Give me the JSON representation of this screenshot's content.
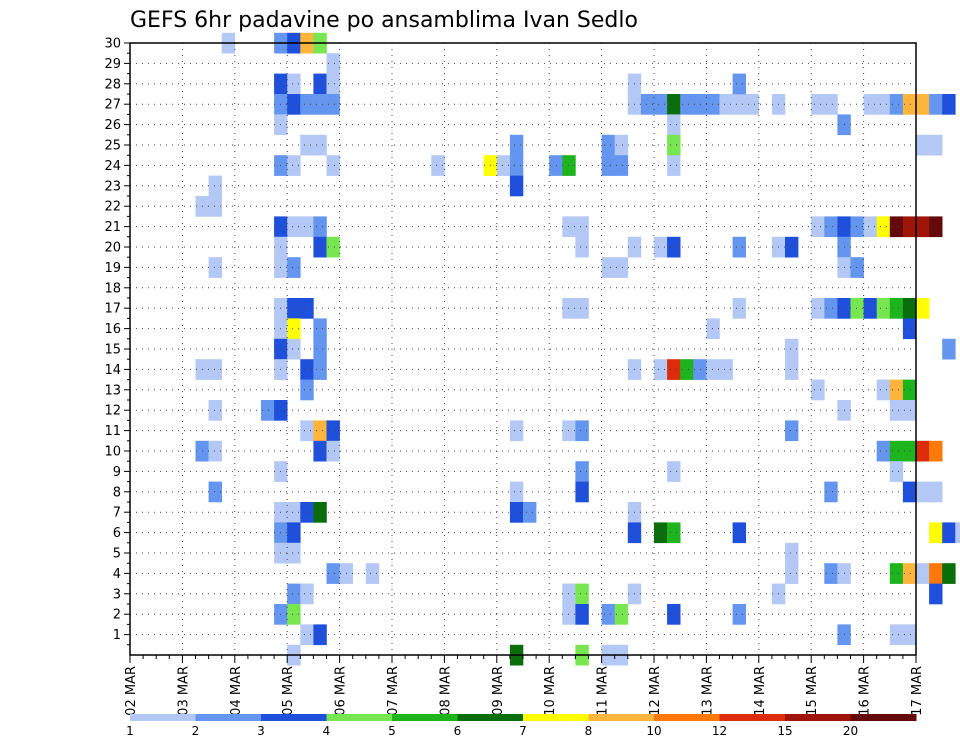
{
  "chart_data": {
    "type": "heatmap",
    "title": "GEFS 6hr padavine po ansamblima Ivan Sedlo",
    "y_ticks": [
      "1",
      "2",
      "3",
      "4",
      "5",
      "6",
      "7",
      "8",
      "9",
      "10",
      "11",
      "12",
      "13",
      "14",
      "15",
      "16",
      "17",
      "18",
      "19",
      "20",
      "21",
      "22",
      "23",
      "24",
      "25",
      "26",
      "27",
      "28",
      "29",
      "30"
    ],
    "x_ticks": [
      "02 MAR",
      "03 MAR",
      "04 MAR",
      "05 MAR",
      "06 MAR",
      "07 MAR",
      "08 MAR",
      "09 MAR",
      "10 MAR",
      "11 MAR",
      "12 MAR",
      "13 MAR",
      "14 MAR",
      "15 MAR",
      "16 MAR",
      "17 MAR"
    ],
    "x_range": [
      "02 MAR 00Z",
      "17 MAR 00Z"
    ],
    "y_range": [
      0,
      30
    ],
    "time_step": "6hr",
    "grid": true,
    "colorbar": {
      "colors": [
        "#b4c8f5",
        "#6496f0",
        "#1e50dc",
        "#78e650",
        "#1eb41e",
        "#0a6e0a",
        "#ffff00",
        "#ffb43c",
        "#ff780a",
        "#dc2d0a",
        "#a0140a",
        "#640a0a"
      ],
      "labels": [
        "1",
        "2",
        "3",
        "4",
        "5",
        "6",
        "7",
        "8",
        "10",
        "12",
        "15",
        "20"
      ],
      "label_positions": [
        0,
        1,
        2,
        3,
        4,
        5,
        6,
        7,
        8,
        9,
        10,
        11
      ]
    },
    "note": "cells: [day_index, step(0-3), member, color_index]",
    "cells": [
      [
        1,
        3,
        30,
        0
      ],
      [
        2,
        3,
        30,
        1
      ],
      [
        3,
        0,
        30,
        2
      ],
      [
        3,
        1,
        30,
        7
      ],
      [
        3,
        2,
        30,
        3
      ],
      [
        3,
        3,
        29,
        0
      ],
      [
        2,
        3,
        28,
        2
      ],
      [
        3,
        0,
        28,
        0
      ],
      [
        3,
        2,
        28,
        2
      ],
      [
        3,
        3,
        28,
        0
      ],
      [
        2,
        3,
        27,
        1
      ],
      [
        3,
        0,
        27,
        2
      ],
      [
        3,
        1,
        27,
        1
      ],
      [
        3,
        2,
        27,
        1
      ],
      [
        3,
        3,
        27,
        1
      ],
      [
        2,
        3,
        26,
        0
      ],
      [
        3,
        1,
        25,
        0
      ],
      [
        3,
        2,
        25,
        0
      ],
      [
        2,
        3,
        24,
        1
      ],
      [
        3,
        0,
        24,
        0
      ],
      [
        3,
        3,
        24,
        0
      ],
      [
        1,
        2,
        23,
        0
      ],
      [
        1,
        1,
        22,
        0
      ],
      [
        1,
        2,
        22,
        0
      ],
      [
        2,
        3,
        21,
        2
      ],
      [
        3,
        0,
        21,
        0
      ],
      [
        3,
        1,
        21,
        0
      ],
      [
        3,
        2,
        21,
        1
      ],
      [
        2,
        3,
        20,
        0
      ],
      [
        3,
        2,
        20,
        2
      ],
      [
        3,
        3,
        20,
        3
      ],
      [
        1,
        2,
        19,
        0
      ],
      [
        2,
        3,
        19,
        0
      ],
      [
        3,
        0,
        19,
        1
      ],
      [
        2,
        3,
        17,
        0
      ],
      [
        3,
        0,
        17,
        2
      ],
      [
        3,
        1,
        17,
        2
      ],
      [
        2,
        3,
        16,
        0
      ],
      [
        3,
        0,
        16,
        6
      ],
      [
        3,
        2,
        16,
        1
      ],
      [
        2,
        3,
        15,
        2
      ],
      [
        3,
        0,
        15,
        0
      ],
      [
        3,
        2,
        15,
        1
      ],
      [
        1,
        1,
        14,
        0
      ],
      [
        1,
        2,
        14,
        0
      ],
      [
        2,
        3,
        14,
        0
      ],
      [
        3,
        1,
        14,
        2
      ],
      [
        3,
        2,
        14,
        1
      ],
      [
        3,
        1,
        13,
        1
      ],
      [
        1,
        2,
        12,
        0
      ],
      [
        2,
        2,
        12,
        1
      ],
      [
        2,
        3,
        12,
        2
      ],
      [
        3,
        1,
        11,
        0
      ],
      [
        3,
        2,
        11,
        7
      ],
      [
        3,
        3,
        11,
        2
      ],
      [
        1,
        1,
        10,
        1
      ],
      [
        1,
        2,
        10,
        0
      ],
      [
        3,
        2,
        10,
        2
      ],
      [
        3,
        3,
        10,
        0
      ],
      [
        2,
        3,
        9,
        0
      ],
      [
        1,
        2,
        8,
        1
      ],
      [
        2,
        3,
        7,
        0
      ],
      [
        3,
        0,
        7,
        0
      ],
      [
        3,
        1,
        7,
        2
      ],
      [
        3,
        2,
        7,
        5
      ],
      [
        2,
        3,
        6,
        1
      ],
      [
        3,
        0,
        6,
        2
      ],
      [
        2,
        3,
        5,
        0
      ],
      [
        3,
        0,
        5,
        0
      ],
      [
        3,
        3,
        4,
        1
      ],
      [
        4,
        0,
        4,
        0
      ],
      [
        4,
        2,
        4,
        0
      ],
      [
        3,
        0,
        3,
        1
      ],
      [
        3,
        1,
        3,
        0
      ],
      [
        2,
        3,
        2,
        1
      ],
      [
        3,
        0,
        2,
        3
      ],
      [
        3,
        1,
        1,
        0
      ],
      [
        3,
        2,
        1,
        2
      ],
      [
        3,
        0,
        0,
        0
      ],
      [
        5,
        3,
        24,
        0
      ],
      [
        6,
        3,
        24,
        6
      ],
      [
        7,
        1,
        25,
        1
      ],
      [
        7,
        0,
        24,
        0
      ],
      [
        7,
        1,
        24,
        1
      ],
      [
        7,
        1,
        23,
        2
      ],
      [
        7,
        1,
        11,
        0
      ],
      [
        7,
        1,
        8,
        0
      ],
      [
        7,
        1,
        7,
        2
      ],
      [
        7,
        2,
        7,
        1
      ],
      [
        7,
        1,
        0,
        5
      ],
      [
        8,
        0,
        24,
        1
      ],
      [
        8,
        1,
        24,
        4
      ],
      [
        8,
        1,
        21,
        0
      ],
      [
        8,
        2,
        21,
        0
      ],
      [
        8,
        2,
        20,
        0
      ],
      [
        8,
        1,
        17,
        0
      ],
      [
        8,
        2,
        17,
        0
      ],
      [
        8,
        1,
        11,
        0
      ],
      [
        8,
        2,
        11,
        1
      ],
      [
        8,
        2,
        9,
        1
      ],
      [
        8,
        2,
        8,
        2
      ],
      [
        8,
        1,
        3,
        0
      ],
      [
        8,
        2,
        3,
        3
      ],
      [
        8,
        1,
        2,
        0
      ],
      [
        8,
        2,
        2,
        2
      ],
      [
        8,
        2,
        0,
        3
      ],
      [
        9,
        0,
        25,
        1
      ],
      [
        9,
        1,
        25,
        0
      ],
      [
        9,
        0,
        24,
        1
      ],
      [
        9,
        1,
        24,
        1
      ],
      [
        9,
        0,
        19,
        0
      ],
      [
        9,
        1,
        19,
        0
      ],
      [
        9,
        2,
        14,
        0
      ],
      [
        9,
        2,
        28,
        0
      ],
      [
        9,
        2,
        27,
        0
      ],
      [
        9,
        3,
        27,
        1
      ],
      [
        9,
        2,
        20,
        0
      ],
      [
        9,
        2,
        7,
        0
      ],
      [
        9,
        2,
        6,
        2
      ],
      [
        9,
        2,
        3,
        0
      ],
      [
        9,
        0,
        2,
        1
      ],
      [
        9,
        1,
        2,
        3
      ],
      [
        9,
        0,
        0,
        0
      ],
      [
        9,
        1,
        0,
        0
      ],
      [
        10,
        0,
        27,
        1
      ],
      [
        10,
        1,
        27,
        5
      ],
      [
        10,
        2,
        27,
        1
      ],
      [
        10,
        3,
        27,
        1
      ],
      [
        10,
        1,
        26,
        0
      ],
      [
        10,
        1,
        25,
        3
      ],
      [
        10,
        1,
        24,
        0
      ],
      [
        10,
        0,
        20,
        0
      ],
      [
        10,
        1,
        20,
        2
      ],
      [
        10,
        0,
        14,
        0
      ],
      [
        10,
        1,
        14,
        9
      ],
      [
        10,
        2,
        14,
        4
      ],
      [
        10,
        3,
        14,
        1
      ],
      [
        10,
        1,
        9,
        0
      ],
      [
        10,
        0,
        6,
        5
      ],
      [
        10,
        1,
        6,
        4
      ],
      [
        10,
        1,
        2,
        2
      ],
      [
        11,
        0,
        27,
        1
      ],
      [
        11,
        1,
        27,
        0
      ],
      [
        11,
        2,
        27,
        0
      ],
      [
        11,
        3,
        27,
        0
      ],
      [
        11,
        2,
        28,
        1
      ],
      [
        11,
        0,
        16,
        0
      ],
      [
        11,
        0,
        14,
        0
      ],
      [
        11,
        1,
        14,
        0
      ],
      [
        11,
        2,
        20,
        1
      ],
      [
        11,
        2,
        17,
        0
      ],
      [
        11,
        2,
        6,
        2
      ],
      [
        11,
        2,
        2,
        1
      ],
      [
        12,
        1,
        27,
        0
      ],
      [
        12,
        1,
        20,
        0
      ],
      [
        12,
        2,
        20,
        2
      ],
      [
        12,
        2,
        15,
        0
      ],
      [
        12,
        2,
        14,
        0
      ],
      [
        12,
        2,
        11,
        1
      ],
      [
        12,
        2,
        5,
        0
      ],
      [
        12,
        2,
        4,
        0
      ],
      [
        12,
        1,
        3,
        0
      ],
      [
        13,
        0,
        27,
        0
      ],
      [
        13,
        1,
        27,
        0
      ],
      [
        13,
        0,
        21,
        0
      ],
      [
        13,
        1,
        21,
        1
      ],
      [
        13,
        2,
        21,
        2
      ],
      [
        13,
        3,
        21,
        1
      ],
      [
        13,
        2,
        20,
        1
      ],
      [
        13,
        2,
        19,
        0
      ],
      [
        13,
        3,
        19,
        1
      ],
      [
        13,
        0,
        17,
        0
      ],
      [
        13,
        1,
        17,
        1
      ],
      [
        13,
        2,
        17,
        2
      ],
      [
        13,
        3,
        17,
        3
      ],
      [
        13,
        0,
        13,
        0
      ],
      [
        13,
        2,
        12,
        0
      ],
      [
        13,
        1,
        8,
        1
      ],
      [
        13,
        1,
        4,
        1
      ],
      [
        13,
        2,
        4,
        0
      ],
      [
        13,
        2,
        26,
        1
      ],
      [
        13,
        2,
        1,
        1
      ],
      [
        14,
        0,
        27,
        0
      ],
      [
        14,
        1,
        27,
        0
      ],
      [
        14,
        2,
        27,
        1
      ],
      [
        14,
        3,
        27,
        7
      ],
      [
        14,
        0,
        21,
        0
      ],
      [
        14,
        1,
        21,
        6
      ],
      [
        14,
        2,
        21,
        11
      ],
      [
        14,
        3,
        21,
        10
      ],
      [
        14,
        0,
        17,
        2
      ],
      [
        14,
        1,
        17,
        3
      ],
      [
        14,
        2,
        17,
        4
      ],
      [
        14,
        3,
        17,
        5
      ],
      [
        14,
        3,
        16,
        2
      ],
      [
        14,
        1,
        13,
        0
      ],
      [
        14,
        2,
        13,
        7
      ],
      [
        14,
        3,
        13,
        4
      ],
      [
        14,
        2,
        12,
        0
      ],
      [
        14,
        3,
        12,
        0
      ],
      [
        14,
        1,
        10,
        1
      ],
      [
        14,
        2,
        10,
        4
      ],
      [
        14,
        3,
        10,
        4
      ],
      [
        14,
        2,
        9,
        0
      ],
      [
        14,
        3,
        8,
        2
      ],
      [
        14,
        2,
        4,
        4
      ],
      [
        14,
        3,
        4,
        7
      ],
      [
        14,
        2,
        1,
        0
      ],
      [
        14,
        3,
        1,
        0
      ],
      [
        15,
        0,
        27,
        7
      ],
      [
        15,
        1,
        27,
        1
      ],
      [
        15,
        2,
        27,
        2
      ],
      [
        15,
        0,
        25,
        0
      ],
      [
        15,
        1,
        25,
        0
      ],
      [
        15,
        0,
        21,
        10
      ],
      [
        15,
        1,
        21,
        11
      ],
      [
        15,
        0,
        17,
        6
      ],
      [
        15,
        0,
        10,
        9
      ],
      [
        15,
        1,
        10,
        8
      ],
      [
        15,
        0,
        8,
        0
      ],
      [
        15,
        1,
        8,
        0
      ],
      [
        15,
        1,
        6,
        6
      ],
      [
        15,
        2,
        6,
        2
      ],
      [
        15,
        3,
        6,
        0
      ],
      [
        15,
        0,
        4,
        0
      ],
      [
        15,
        1,
        4,
        8
      ],
      [
        15,
        2,
        4,
        5
      ],
      [
        15,
        1,
        3,
        2
      ],
      [
        15,
        2,
        15,
        1
      ]
    ]
  }
}
